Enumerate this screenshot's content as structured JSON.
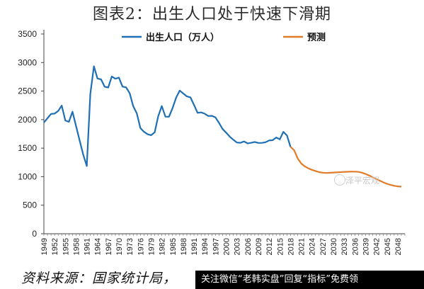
{
  "title": "图表2：出生人口处于快速下滑期",
  "source": "资料来源：国家统计局，",
  "follow_bar": "关注微信“老韩实盘”回复“指标”免费领",
  "watermark": "泽平宏观",
  "chart_data": {
    "type": "line",
    "title": "图表2：出生人口处于快速下滑期",
    "xlabel": "",
    "ylabel": "",
    "ylim": [
      0,
      3500
    ],
    "yticks": [
      0,
      500,
      1000,
      1500,
      2000,
      2500,
      3000,
      3500
    ],
    "xlim": [
      1949,
      2050
    ],
    "xtick_labels": [
      "1949",
      "1952",
      "1955",
      "1958",
      "1961",
      "1964",
      "1967",
      "1970",
      "1973",
      "1976",
      "1979",
      "1982",
      "1985",
      "1988",
      "1991",
      "1994",
      "1997",
      "2000",
      "2003",
      "2006",
      "2009",
      "2012",
      "2015",
      "2018",
      "2021",
      "2024",
      "2027",
      "2030",
      "2033",
      "2036",
      "2039",
      "2042",
      "2045",
      "2048"
    ],
    "legend_position": "top",
    "grid": false,
    "series": [
      {
        "name": "出生人口（万人）",
        "color": "#1f6fb4",
        "x": [
          1949,
          1950,
          1951,
          1952,
          1953,
          1954,
          1955,
          1956,
          1957,
          1958,
          1959,
          1960,
          1961,
          1962,
          1963,
          1964,
          1965,
          1966,
          1967,
          1968,
          1969,
          1970,
          1971,
          1972,
          1973,
          1974,
          1975,
          1976,
          1977,
          1978,
          1979,
          1980,
          1981,
          1982,
          1983,
          1984,
          1985,
          1986,
          1987,
          1988,
          1989,
          1990,
          1991,
          1992,
          1993,
          1994,
          1995,
          1996,
          1997,
          1998,
          1999,
          2000,
          2001,
          2002,
          2003,
          2004,
          2005,
          2006,
          2007,
          2008,
          2009,
          2010,
          2011,
          2012,
          2013,
          2014,
          2015,
          2016,
          2017,
          2018
        ],
        "values": [
          1950,
          2023,
          2100,
          2105,
          2151,
          2245,
          1984,
          1961,
          2138,
          1889,
          1635,
          1389,
          1187,
          2451,
          2934,
          2721,
          2704,
          2577,
          2563,
          2757,
          2715,
          2736,
          2578,
          2566,
          2463,
          2235,
          2109,
          1853,
          1786,
          1745,
          1727,
          1776,
          2064,
          2237,
          2052,
          2050,
          2202,
          2384,
          2508,
          2457,
          2407,
          2391,
          2258,
          2119,
          2126,
          2104,
          2063,
          2067,
          2038,
          1942,
          1834,
          1771,
          1702,
          1647,
          1599,
          1593,
          1617,
          1584,
          1594,
          1608,
          1591,
          1592,
          1604,
          1635,
          1640,
          1687,
          1655,
          1786,
          1723,
          1523
        ]
      },
      {
        "name": "预测",
        "color": "#e07b2a",
        "x": [
          2018,
          2019,
          2020,
          2021,
          2022,
          2023,
          2024,
          2025,
          2026,
          2027,
          2028,
          2029,
          2030,
          2031,
          2032,
          2033,
          2034,
          2035,
          2036,
          2037,
          2038,
          2039,
          2040,
          2041,
          2042,
          2043,
          2044,
          2045,
          2046,
          2047,
          2048,
          2049
        ],
        "values": [
          1523,
          1465,
          1320,
          1230,
          1180,
          1145,
          1120,
          1100,
          1080,
          1070,
          1065,
          1068,
          1072,
          1076,
          1080,
          1083,
          1086,
          1088,
          1088,
          1083,
          1070,
          1048,
          1020,
          990,
          960,
          930,
          900,
          875,
          855,
          840,
          830,
          825
        ]
      }
    ]
  }
}
